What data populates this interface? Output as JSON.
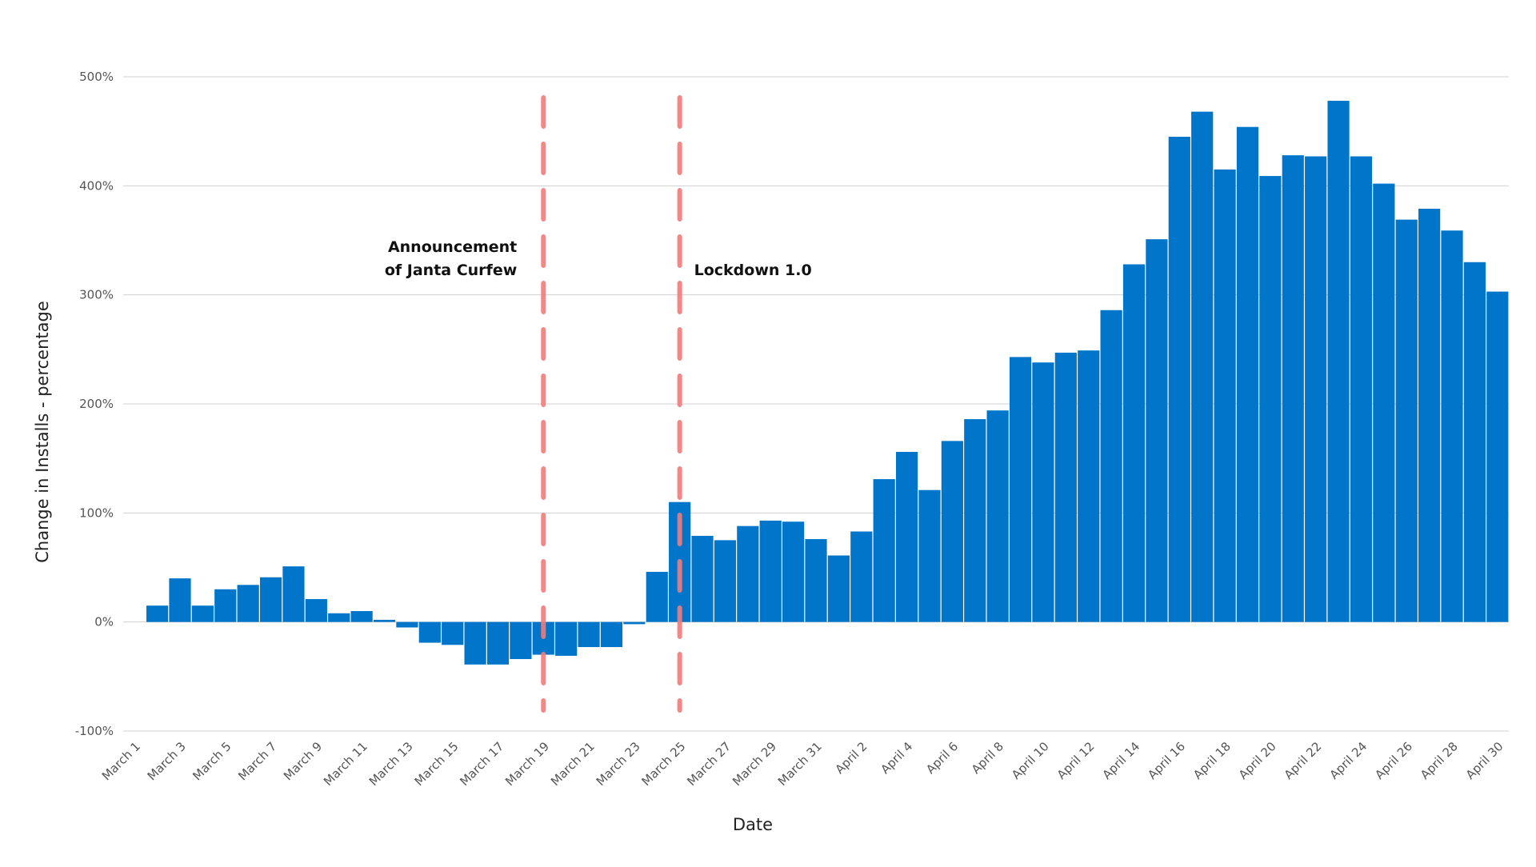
{
  "chart_data": {
    "type": "bar",
    "x_label": "Date",
    "y_label": "Change in Installs - percentage",
    "categories": [
      "March 1",
      null,
      "March 3",
      null,
      "March 5",
      null,
      "March 7",
      null,
      "March 9",
      null,
      "March 11",
      null,
      "March 13",
      null,
      "March 15",
      null,
      "March 17",
      null,
      "March 19",
      null,
      "March 21",
      null,
      "March 23",
      null,
      "March 25",
      null,
      "March 27",
      null,
      "March 29",
      null,
      "March 31",
      null,
      "April 2",
      null,
      "April 4",
      null,
      "April 6",
      null,
      "April 8",
      null,
      "April 10",
      null,
      "April 12",
      null,
      "April 14",
      null,
      "April 16",
      null,
      "April 18",
      null,
      "April 20",
      null,
      "April 22",
      null,
      "April 24",
      null,
      "April 26",
      null,
      "April 28",
      null,
      "April 30"
    ],
    "values": [
      0,
      15,
      40,
      15,
      30,
      34,
      41,
      51,
      21,
      8,
      10,
      2,
      -5,
      -19,
      -21,
      -39,
      -39,
      -34,
      -30,
      -31,
      -23,
      -23,
      -2,
      46,
      110,
      79,
      75,
      88,
      93,
      92,
      76,
      61,
      83,
      131,
      156,
      121,
      166,
      186,
      194,
      243,
      238,
      247,
      249,
      286,
      328,
      351,
      445,
      468,
      415,
      454,
      409,
      428,
      427,
      478,
      427,
      402,
      369,
      379,
      359,
      330,
      303
    ],
    "color": "#0075c9",
    "ylim": [
      -100,
      500
    ],
    "yticks": [
      {
        "value": -100,
        "label": "-100%"
      },
      {
        "value": 0,
        "label": "0%"
      },
      {
        "value": 100,
        "label": "100%"
      },
      {
        "value": 200,
        "label": "200%"
      },
      {
        "value": 300,
        "label": "300%"
      },
      {
        "value": 400,
        "label": "400%"
      },
      {
        "value": 500,
        "label": "500%"
      }
    ],
    "grid": true,
    "annotations": [
      {
        "x": "March 19",
        "text": [
          "Announcement",
          "of Janta Curfew"
        ],
        "side": "left",
        "color": "#f47b7b"
      },
      {
        "x": "March 25",
        "text": [
          "Lockdown 1.0"
        ],
        "side": "right",
        "color": "#f47b7b"
      }
    ]
  }
}
